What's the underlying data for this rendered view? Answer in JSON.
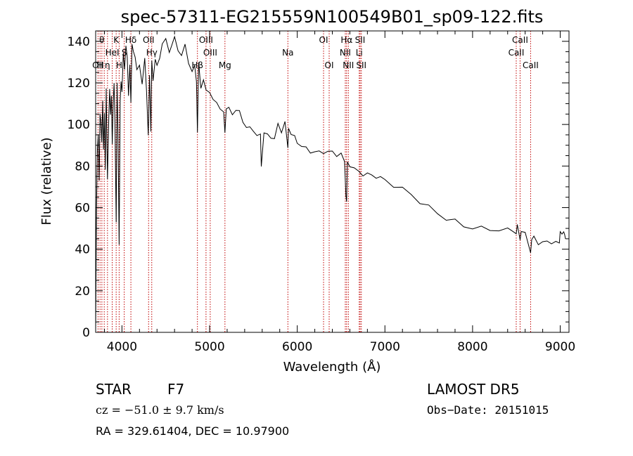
{
  "chart_data": {
    "type": "line",
    "title": "spec-57311-EG215559N100549B01_sp09-122.fits",
    "xlabel": "Wavelength (Å)",
    "ylabel": "Flux (relative)",
    "xlim": [
      3700,
      9100
    ],
    "ylim": [
      0,
      145
    ],
    "xticks": [
      4000,
      5000,
      6000,
      7000,
      8000,
      9000
    ],
    "yticks": [
      0,
      20,
      40,
      60,
      80,
      100,
      120,
      140
    ],
    "grid": false,
    "line_color": "#000000",
    "marker_color": "#c00000",
    "lines": [
      {
        "wl": 3727,
        "label": "OII",
        "row": 3
      },
      {
        "wl": 3750,
        "label": "H",
        "row": 3
      },
      {
        "wl": 3771,
        "label": "θ",
        "row": 1
      },
      {
        "wl": 3798,
        "label": "",
        "row": 3
      },
      {
        "wl": 3835,
        "label": "η",
        "row": 3
      },
      {
        "wl": 3889,
        "label": "HeI",
        "row": 2
      },
      {
        "wl": 3934,
        "label": "K",
        "row": 1
      },
      {
        "wl": 3968,
        "label": "H",
        "row": 3
      },
      {
        "wl": 4102,
        "label": "Hδ",
        "row": 1
      },
      {
        "wl": 4026,
        "label": "S",
        "row": 2
      },
      {
        "wl": 4304,
        "label": "OII",
        "row": 1
      },
      {
        "wl": 4340,
        "label": "Hγ",
        "row": 2
      },
      {
        "wl": 4861,
        "label": "Hβ",
        "row": 3
      },
      {
        "wl": 4959,
        "label": "OIII",
        "row": 1
      },
      {
        "wl": 5007,
        "label": "OIII",
        "row": 2
      },
      {
        "wl": 5175,
        "label": "Mg",
        "row": 3
      },
      {
        "wl": 5893,
        "label": "Na",
        "row": 2
      },
      {
        "wl": 6300,
        "label": "OI",
        "row": 1
      },
      {
        "wl": 6364,
        "label": "OI",
        "row": 3
      },
      {
        "wl": 6548,
        "label": "NII",
        "row": 2
      },
      {
        "wl": 6563,
        "label": "Hα",
        "row": 1
      },
      {
        "wl": 6583,
        "label": "NII",
        "row": 3
      },
      {
        "wl": 6707,
        "label": "Li",
        "row": 2
      },
      {
        "wl": 6717,
        "label": "SII",
        "row": 1
      },
      {
        "wl": 6731,
        "label": "SII",
        "row": 3
      },
      {
        "wl": 8498,
        "label": "CaII",
        "row": 2
      },
      {
        "wl": 8542,
        "label": "CaII",
        "row": 1
      },
      {
        "wl": 8662,
        "label": "CaII",
        "row": 3
      }
    ],
    "spectrum": {
      "x": [
        3700,
        3710,
        3720,
        3730,
        3740,
        3750,
        3760,
        3770,
        3780,
        3790,
        3800,
        3810,
        3820,
        3835,
        3850,
        3860,
        3870,
        3880,
        3889,
        3900,
        3910,
        3920,
        3934,
        3945,
        3955,
        3968,
        3980,
        3990,
        4000,
        4015,
        4030,
        4045,
        4060,
        4075,
        4090,
        4102,
        4115,
        4130,
        4150,
        4170,
        4200,
        4230,
        4260,
        4280,
        4300,
        4315,
        4330,
        4340,
        4355,
        4380,
        4400,
        4430,
        4460,
        4500,
        4540,
        4570,
        4600,
        4640,
        4680,
        4720,
        4760,
        4800,
        4830,
        4850,
        4861,
        4875,
        4900,
        4930,
        4960,
        5000,
        5040,
        5080,
        5120,
        5160,
        5175,
        5190,
        5220,
        5260,
        5300,
        5340,
        5380,
        5420,
        5460,
        5500,
        5540,
        5580,
        5590,
        5620,
        5660,
        5700,
        5740,
        5780,
        5820,
        5860,
        5893,
        5900,
        5930,
        5970,
        6000,
        6050,
        6100,
        6150,
        6200,
        6250,
        6300,
        6350,
        6400,
        6450,
        6500,
        6540,
        6555,
        6563,
        6572,
        6600,
        6650,
        6700,
        6750,
        6800,
        6850,
        6900,
        6950,
        7000,
        7100,
        7200,
        7300,
        7400,
        7500,
        7600,
        7700,
        7800,
        7900,
        8000,
        8100,
        8200,
        8300,
        8400,
        8450,
        8498,
        8510,
        8542,
        8555,
        8600,
        8662,
        8675,
        8700,
        8750,
        8800,
        8850,
        8900,
        8950,
        8990,
        9000,
        9020,
        9040,
        9050,
        9060
      ],
      "y": [
        0,
        60,
        88,
        95,
        72,
        104,
        99,
        92,
        112,
        88,
        108,
        80,
        118,
        76,
        104,
        116,
        105,
        112,
        88,
        110,
        118,
        100,
        54,
        120,
        96,
        45,
        112,
        122,
        118,
        134,
        126,
        138,
        130,
        112,
        128,
        108,
        138,
        136,
        132,
        128,
        131,
        120,
        134,
        118,
        94,
        124,
        96,
        128,
        120,
        130,
        126,
        132,
        139,
        141,
        137,
        140,
        143,
        138,
        134,
        138,
        130,
        124,
        126,
        120,
        94,
        128,
        118,
        121,
        117,
        118,
        113,
        112,
        110,
        106,
        96,
        108,
        106,
        103,
        106,
        104,
        100,
        99,
        98,
        98,
        97,
        96,
        82,
        98,
        95,
        94,
        93,
        98,
        95,
        100,
        86,
        98,
        95,
        94,
        93,
        91,
        90,
        89,
        88,
        87,
        87,
        86,
        85,
        84,
        84,
        80,
        66,
        62,
        82,
        82,
        80,
        79,
        78,
        77,
        76,
        75,
        73,
        72,
        69,
        67,
        65,
        62,
        60,
        58,
        56,
        55,
        53,
        52,
        51,
        50,
        49,
        48,
        48,
        46,
        49,
        44,
        48,
        47,
        40,
        46,
        47,
        45,
        45,
        44,
        44,
        43,
        41,
        48,
        45,
        46,
        47,
        45
      ]
    }
  },
  "footer": {
    "left_line1_a": "STAR",
    "left_line1_b": "F7",
    "cz_text": "cz = −51.0 ± 9.7 km/s",
    "radec_text": "RA = 329.61404, DEC =  10.97900",
    "right_line1": "LAMOST DR5",
    "obs_date": "Obs−Date: 20151015"
  }
}
